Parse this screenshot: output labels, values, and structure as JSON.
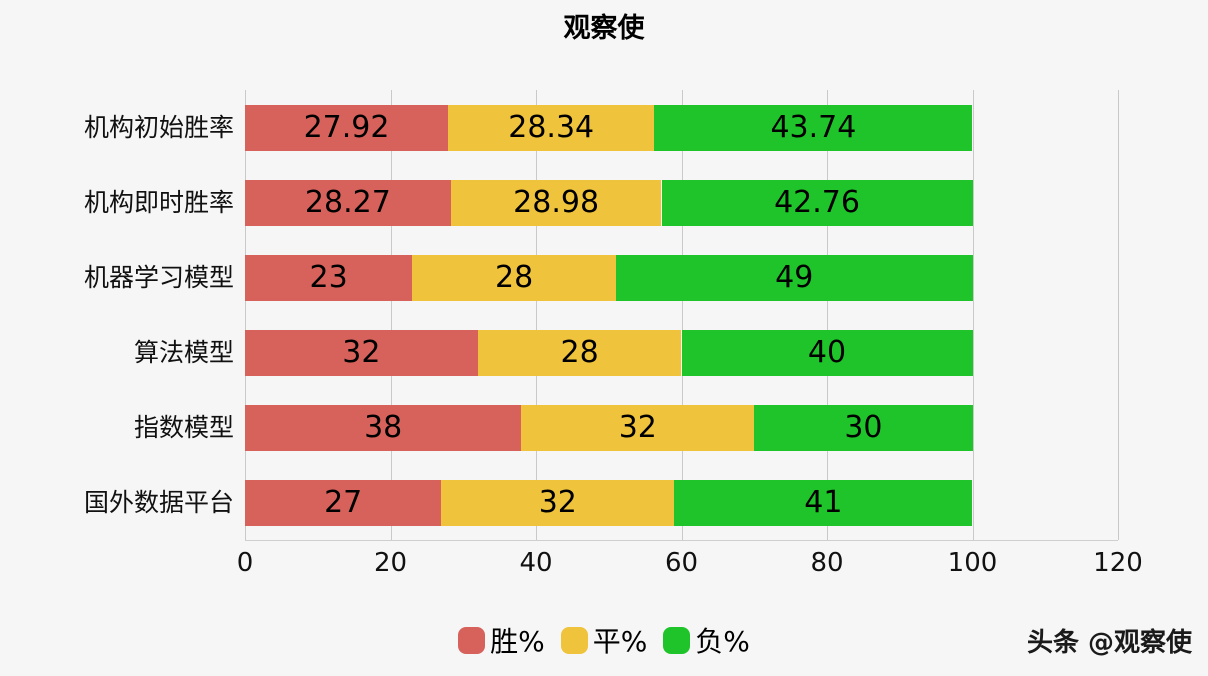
{
  "watermark": "头条 @观察使",
  "chart_data": {
    "type": "bar",
    "orientation": "horizontal",
    "stacked": true,
    "title": "观察使",
    "xlabel": "",
    "ylabel": "",
    "categories": [
      "机构初始胜率",
      "机构即时胜率",
      "机器学习模型",
      "算法模型",
      "指数模型",
      "国外数据平台"
    ],
    "series": [
      {
        "name": "胜%",
        "color": "#d7625b",
        "values": [
          27.92,
          28.27,
          23,
          32,
          38,
          27
        ]
      },
      {
        "name": "平%",
        "color": "#efc33c",
        "values": [
          28.34,
          28.98,
          28,
          28,
          32,
          32
        ]
      },
      {
        "name": "负%",
        "color": "#1fc42a",
        "values": [
          43.74,
          42.76,
          49,
          40,
          30,
          41
        ]
      }
    ],
    "xlim": [
      0,
      120
    ],
    "xticks": [
      0,
      20,
      40,
      60,
      80,
      100,
      120
    ],
    "grid": true,
    "legend_position": "bottom"
  }
}
